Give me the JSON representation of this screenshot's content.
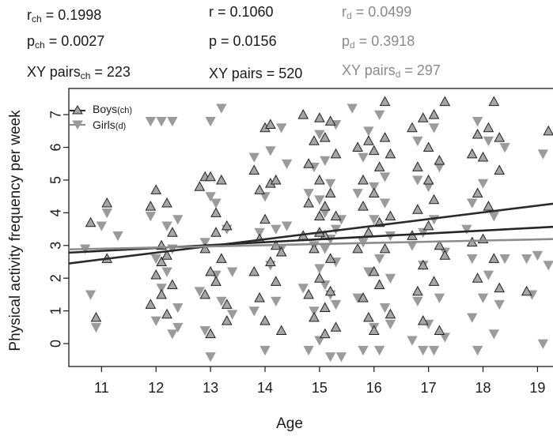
{
  "stats": {
    "r_ch": {
      "base": "r",
      "sub": "ch",
      "rest": " = 0.1998"
    },
    "p_ch": {
      "base": "p",
      "sub": "ch",
      "rest": " = 0.0027"
    },
    "xy_ch": {
      "base": "XY pairs",
      "sub": "ch",
      "rest": " = 223"
    },
    "r_all": {
      "text": "r = 0.1060"
    },
    "p_all": {
      "text": "p = 0.0156"
    },
    "xy_all": {
      "text": "XY pairs = 520"
    },
    "r_d": {
      "base": "r",
      "sub": "d",
      "rest": " = 0.0499"
    },
    "p_d": {
      "base": "p",
      "sub": "d",
      "rest": " = 0.3918"
    },
    "xy_d": {
      "base": "XY pairs",
      "sub": "d",
      "rest": " = 297"
    }
  },
  "chart_data": {
    "type": "scatter",
    "xlabel": "Age",
    "ylabel": "Physical activity frequency per week",
    "xlim": [
      10.4,
      19.4
    ],
    "ylim": [
      -0.7,
      7.8
    ],
    "xticks": [
      11,
      12,
      13,
      14,
      15,
      16,
      17,
      18,
      19
    ],
    "yticks": [
      0,
      1,
      2,
      3,
      4,
      5,
      6,
      7
    ],
    "legend": {
      "position": "top-left",
      "entries": [
        {
          "label": "Boys",
          "sub": "(ch)",
          "marker": "triangle-up"
        },
        {
          "label": "Girls",
          "sub": "(d)",
          "marker": "triangle-down"
        }
      ]
    },
    "colors": {
      "boys_fill": "#a6a6a6",
      "girls_fill": "#9b9b9b",
      "boys_line": "#2b2b2b",
      "all_line": "#262626",
      "girls_line": "#8c8c8c"
    },
    "series": [
      {
        "name": "Boys",
        "marker": "triangle-up",
        "points": [
          [
            10.8,
            3.7
          ],
          [
            10.9,
            0.8
          ],
          [
            11.1,
            4.3
          ],
          [
            11.1,
            2.6
          ],
          [
            11.9,
            4.2
          ],
          [
            11.9,
            1.2
          ],
          [
            12.0,
            2.1
          ],
          [
            12.0,
            4.7
          ],
          [
            12.1,
            3.0
          ],
          [
            12.1,
            1.5
          ],
          [
            12.1,
            2.5
          ],
          [
            12.2,
            0.9
          ],
          [
            12.2,
            4.3
          ],
          [
            12.2,
            2.7
          ],
          [
            12.3,
            3.4
          ],
          [
            12.3,
            1.8
          ],
          [
            12.8,
            4.8
          ],
          [
            12.9,
            5.1
          ],
          [
            12.9,
            2.9
          ],
          [
            12.9,
            1.5
          ],
          [
            13.0,
            2.2
          ],
          [
            13.0,
            5.1
          ],
          [
            13.0,
            0.3
          ],
          [
            13.1,
            4.0
          ],
          [
            13.1,
            3.4
          ],
          [
            13.1,
            1.9
          ],
          [
            13.2,
            5.0
          ],
          [
            13.2,
            2.6
          ],
          [
            13.3,
            1.2
          ],
          [
            13.3,
            0.7
          ],
          [
            13.3,
            3.6
          ],
          [
            13.8,
            5.3
          ],
          [
            13.8,
            2.2
          ],
          [
            13.9,
            3.2
          ],
          [
            13.9,
            4.7
          ],
          [
            13.9,
            1.4
          ],
          [
            14.0,
            6.6
          ],
          [
            14.0,
            3.8
          ],
          [
            14.0,
            0.7
          ],
          [
            14.1,
            4.9
          ],
          [
            14.1,
            2.5
          ],
          [
            14.1,
            6.7
          ],
          [
            14.2,
            3.0
          ],
          [
            14.2,
            1.9
          ],
          [
            14.2,
            5.0
          ],
          [
            14.3,
            2.8
          ],
          [
            14.3,
            0.4
          ],
          [
            14.7,
            7.0
          ],
          [
            14.7,
            3.3
          ],
          [
            14.8,
            5.5
          ],
          [
            14.8,
            1.5
          ],
          [
            14.8,
            4.3
          ],
          [
            14.9,
            2.9
          ],
          [
            14.9,
            6.2
          ],
          [
            14.9,
            0.8
          ],
          [
            15.0,
            6.9
          ],
          [
            15.0,
            3.9
          ],
          [
            15.0,
            2.0
          ],
          [
            15.0,
            5.0
          ],
          [
            15.1,
            1.1
          ],
          [
            15.1,
            6.3
          ],
          [
            15.1,
            3.3
          ],
          [
            15.1,
            0.3
          ],
          [
            15.2,
            4.6
          ],
          [
            15.2,
            2.6
          ],
          [
            15.2,
            6.8
          ],
          [
            15.2,
            1.6
          ],
          [
            15.3,
            5.8
          ],
          [
            15.3,
            3.9
          ],
          [
            15.3,
            0.5
          ],
          [
            15.0,
            3.4
          ],
          [
            15.1,
            4.2
          ],
          [
            15.7,
            6.0
          ],
          [
            15.7,
            2.9
          ],
          [
            15.8,
            5.0
          ],
          [
            15.8,
            1.4
          ],
          [
            15.8,
            4.2
          ],
          [
            15.9,
            3.4
          ],
          [
            15.9,
            6.2
          ],
          [
            15.9,
            0.8
          ],
          [
            16.0,
            4.6
          ],
          [
            16.0,
            2.2
          ],
          [
            16.0,
            5.9
          ],
          [
            16.0,
            0.4
          ],
          [
            16.1,
            3.7
          ],
          [
            16.1,
            1.8
          ],
          [
            16.1,
            5.4
          ],
          [
            16.2,
            7.4
          ],
          [
            16.2,
            2.9
          ],
          [
            16.2,
            6.3
          ],
          [
            16.3,
            0.9
          ],
          [
            16.3,
            3.9
          ],
          [
            16.3,
            5.8
          ],
          [
            16.7,
            6.6
          ],
          [
            16.7,
            3.3
          ],
          [
            16.8,
            5.4
          ],
          [
            16.8,
            1.6
          ],
          [
            16.8,
            4.1
          ],
          [
            16.9,
            6.9
          ],
          [
            16.9,
            2.4
          ],
          [
            16.9,
            0.7
          ],
          [
            17.0,
            6.0
          ],
          [
            17.0,
            3.6
          ],
          [
            17.0,
            5.0
          ],
          [
            17.1,
            1.9
          ],
          [
            17.1,
            7.0
          ],
          [
            17.1,
            4.4
          ],
          [
            17.2,
            3.0
          ],
          [
            17.2,
            5.6
          ],
          [
            17.2,
            0.4
          ],
          [
            17.3,
            7.4
          ],
          [
            17.3,
            2.7
          ],
          [
            17.8,
            5.8
          ],
          [
            17.8,
            3.1
          ],
          [
            17.9,
            6.4
          ],
          [
            17.9,
            4.6
          ],
          [
            17.9,
            2.0
          ],
          [
            18.0,
            5.7
          ],
          [
            18.0,
            3.2
          ],
          [
            18.1,
            6.6
          ],
          [
            18.1,
            4.2
          ],
          [
            18.2,
            7.4
          ],
          [
            18.2,
            2.6
          ],
          [
            18.3,
            5.3
          ],
          [
            18.3,
            1.7
          ],
          [
            18.3,
            6.3
          ],
          [
            18.8,
            1.6
          ],
          [
            19.2,
            6.5
          ]
        ]
      },
      {
        "name": "Girls",
        "marker": "triangle-down",
        "points": [
          [
            10.7,
            2.9
          ],
          [
            10.8,
            1.5
          ],
          [
            10.9,
            0.5
          ],
          [
            11.0,
            3.6
          ],
          [
            11.1,
            4.0
          ],
          [
            11.3,
            3.3
          ],
          [
            11.9,
            3.9
          ],
          [
            11.9,
            6.8
          ],
          [
            12.0,
            2.6
          ],
          [
            12.0,
            0.7
          ],
          [
            12.1,
            1.7
          ],
          [
            12.1,
            6.8
          ],
          [
            12.2,
            3.6
          ],
          [
            12.2,
            2.2
          ],
          [
            12.3,
            0.3
          ],
          [
            12.3,
            6.8
          ],
          [
            12.3,
            2.9
          ],
          [
            12.4,
            1.1
          ],
          [
            12.4,
            0.5
          ],
          [
            12.4,
            3.8
          ],
          [
            12.8,
            1.6
          ],
          [
            12.9,
            0.4
          ],
          [
            12.9,
            3.1
          ],
          [
            13.0,
            6.8
          ],
          [
            13.0,
            -0.4
          ],
          [
            13.0,
            4.5
          ],
          [
            13.1,
            2.1
          ],
          [
            13.1,
            4.3
          ],
          [
            13.2,
            7.2
          ],
          [
            13.2,
            1.3
          ],
          [
            13.3,
            3.5
          ],
          [
            13.4,
            0.9
          ],
          [
            13.4,
            2.2
          ],
          [
            13.8,
            5.7
          ],
          [
            13.8,
            1.0
          ],
          [
            13.9,
            3.4
          ],
          [
            14.0,
            -0.2
          ],
          [
            14.0,
            4.5
          ],
          [
            14.1,
            2.4
          ],
          [
            14.1,
            5.9
          ],
          [
            14.2,
            3.5
          ],
          [
            14.2,
            1.3
          ],
          [
            14.3,
            2.9
          ],
          [
            14.3,
            6.6
          ],
          [
            14.4,
            5.5
          ],
          [
            14.4,
            3.6
          ],
          [
            14.7,
            1.7
          ],
          [
            14.8,
            4.6
          ],
          [
            14.8,
            -0.2
          ],
          [
            14.9,
            3.0
          ],
          [
            14.9,
            5.4
          ],
          [
            14.9,
            1.0
          ],
          [
            15.0,
            2.3
          ],
          [
            15.0,
            6.4
          ],
          [
            15.0,
            0.1
          ],
          [
            15.1,
            4.0
          ],
          [
            15.1,
            1.8
          ],
          [
            15.1,
            5.6
          ],
          [
            15.2,
            3.2
          ],
          [
            15.2,
            -0.4
          ],
          [
            15.2,
            4.9
          ],
          [
            15.3,
            2.5
          ],
          [
            15.3,
            6.7
          ],
          [
            15.3,
            1.2
          ],
          [
            15.4,
            3.8
          ],
          [
            15.4,
            -0.4
          ],
          [
            15.0,
            4.4
          ],
          [
            15.1,
            2.9
          ],
          [
            15.2,
            1.5
          ],
          [
            15.3,
            3.5
          ],
          [
            15.6,
            7.2
          ],
          [
            15.7,
            1.4
          ],
          [
            15.7,
            4.6
          ],
          [
            15.8,
            -0.2
          ],
          [
            15.8,
            3.1
          ],
          [
            15.8,
            5.7
          ],
          [
            15.9,
            2.2
          ],
          [
            15.9,
            6.5
          ],
          [
            16.0,
            0.5
          ],
          [
            16.0,
            3.8
          ],
          [
            16.0,
            4.8
          ],
          [
            16.1,
            -0.2
          ],
          [
            16.1,
            2.6
          ],
          [
            16.1,
            7.0
          ],
          [
            16.2,
            1.1
          ],
          [
            16.2,
            4.3
          ],
          [
            16.2,
            5.1
          ],
          [
            16.3,
            0.6
          ],
          [
            16.3,
            3.3
          ],
          [
            16.3,
            2.0
          ],
          [
            16.7,
            0.1
          ],
          [
            16.7,
            3.0
          ],
          [
            16.8,
            6.2
          ],
          [
            16.8,
            1.3
          ],
          [
            16.8,
            5.0
          ],
          [
            16.9,
            -0.2
          ],
          [
            16.9,
            3.4
          ],
          [
            16.9,
            2.4
          ],
          [
            17.0,
            4.8
          ],
          [
            17.0,
            0.6
          ],
          [
            17.1,
            6.6
          ],
          [
            17.1,
            -0.2
          ],
          [
            17.1,
            3.8
          ],
          [
            17.2,
            1.4
          ],
          [
            17.2,
            5.4
          ],
          [
            17.3,
            2.8
          ],
          [
            17.3,
            0.2
          ],
          [
            17.7,
            3.5
          ],
          [
            17.8,
            0.8
          ],
          [
            17.8,
            4.3
          ],
          [
            17.8,
            2.6
          ],
          [
            17.9,
            -0.2
          ],
          [
            17.9,
            6.8
          ],
          [
            18.0,
            1.4
          ],
          [
            18.0,
            4.9
          ],
          [
            18.1,
            2.1
          ],
          [
            18.1,
            6.2
          ],
          [
            18.2,
            0.3
          ],
          [
            18.2,
            3.9
          ],
          [
            18.3,
            1.2
          ],
          [
            18.4,
            2.6
          ],
          [
            18.4,
            6.0
          ],
          [
            18.8,
            2.6
          ],
          [
            18.9,
            1.5
          ],
          [
            19.0,
            2.7
          ],
          [
            19.1,
            0.0
          ],
          [
            19.2,
            2.4
          ],
          [
            19.1,
            5.8
          ]
        ]
      }
    ],
    "regression_lines": [
      {
        "name": "Boys",
        "x": [
          10.4,
          19.4
        ],
        "y": [
          2.45,
          4.3
        ]
      },
      {
        "name": "All",
        "x": [
          10.4,
          19.4
        ],
        "y": [
          2.78,
          3.58
        ]
      },
      {
        "name": "Girls",
        "x": [
          10.4,
          19.4
        ],
        "y": [
          2.88,
          3.2
        ]
      }
    ]
  }
}
